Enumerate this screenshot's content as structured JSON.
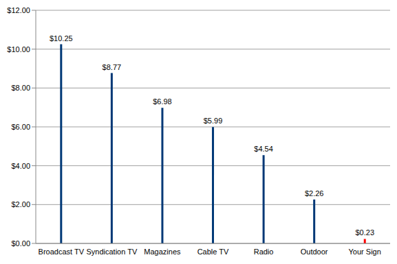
{
  "chart_data": {
    "type": "bar",
    "categories": [
      "Broadcast TV",
      "Syndication TV",
      "Magazines",
      "Cable TV",
      "Radio",
      "Outdoor",
      "Your Sign"
    ],
    "values": [
      10.25,
      8.77,
      6.98,
      5.99,
      4.54,
      2.26,
      0.23
    ],
    "value_labels": [
      "$10.25",
      "$8.77",
      "$6.98",
      "$5.99",
      "$4.54",
      "$2.26",
      "$0.23"
    ],
    "colors": [
      "#003876",
      "#003876",
      "#003876",
      "#003876",
      "#003876",
      "#003876",
      "#ff0000"
    ],
    "ylim": [
      0,
      12
    ],
    "yticks": [
      {
        "value": 0,
        "label": "$0.00"
      },
      {
        "value": 2,
        "label": "$2.00"
      },
      {
        "value": 4,
        "label": "$4.00"
      },
      {
        "value": 6,
        "label": "$6.00"
      },
      {
        "value": 8,
        "label": "$8.00"
      },
      {
        "value": 10,
        "label": "$10.00"
      },
      {
        "value": 12,
        "label": "$12.00"
      }
    ],
    "grid": true,
    "data_labels": true
  }
}
